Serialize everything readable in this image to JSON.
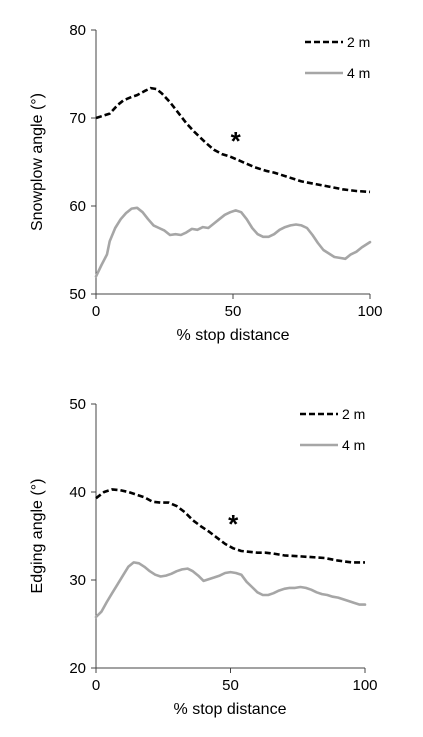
{
  "chart_data": [
    {
      "type": "line",
      "title": "",
      "xlabel": "% stop distance",
      "ylabel": "Snowplow angle (°)",
      "xlim": [
        0,
        100
      ],
      "ylim": [
        50,
        80
      ],
      "xticks": [
        "0",
        "50",
        "100"
      ],
      "yticks": [
        "50",
        "60",
        "70",
        "80"
      ],
      "grid": false,
      "legend_position": "top-right",
      "annotation": {
        "text": "*",
        "x": 51,
        "y": 67.5
      },
      "series": [
        {
          "name": "2 m",
          "style": "dashed",
          "color": "#000000",
          "x": [
            0,
            3,
            5,
            8,
            10,
            13,
            15,
            18,
            20,
            22,
            24,
            27,
            30,
            33,
            36,
            40,
            43,
            46,
            49,
            52,
            55,
            58,
            62,
            65,
            70,
            75,
            80,
            85,
            90,
            95,
            100
          ],
          "y": [
            70.0,
            70.3,
            70.5,
            71.5,
            72.0,
            72.4,
            72.6,
            73.1,
            73.4,
            73.3,
            72.8,
            71.8,
            70.6,
            69.4,
            68.4,
            67.2,
            66.4,
            65.9,
            65.6,
            65.2,
            64.8,
            64.4,
            64.0,
            63.8,
            63.3,
            62.8,
            62.5,
            62.2,
            61.9,
            61.7,
            61.6
          ]
        },
        {
          "name": "4 m",
          "style": "solid",
          "color": "#a6a6a6",
          "x": [
            0,
            2,
            4,
            5,
            7,
            9,
            11,
            13,
            15,
            17,
            19,
            21,
            23,
            25,
            27,
            29,
            31,
            33,
            35,
            37,
            39,
            41,
            43,
            45,
            47,
            49,
            51,
            53,
            55,
            57,
            59,
            61,
            63,
            65,
            67,
            69,
            71,
            73,
            75,
            77,
            79,
            81,
            83,
            85,
            87,
            89,
            91,
            93,
            95,
            97,
            100
          ],
          "y": [
            52.0,
            53.3,
            54.5,
            56.0,
            57.5,
            58.5,
            59.2,
            59.7,
            59.8,
            59.3,
            58.5,
            57.8,
            57.5,
            57.2,
            56.7,
            56.8,
            56.7,
            57.0,
            57.4,
            57.3,
            57.6,
            57.5,
            58.0,
            58.5,
            59.0,
            59.3,
            59.5,
            59.3,
            58.5,
            57.5,
            56.8,
            56.5,
            56.5,
            56.8,
            57.3,
            57.6,
            57.8,
            57.9,
            57.8,
            57.5,
            56.7,
            55.8,
            55.0,
            54.6,
            54.2,
            54.1,
            54.0,
            54.5,
            54.8,
            55.3,
            55.9
          ]
        }
      ]
    },
    {
      "type": "line",
      "title": "",
      "xlabel": "% stop distance",
      "ylabel": "Edging angle (°)",
      "xlim": [
        0,
        100
      ],
      "ylim": [
        20,
        50
      ],
      "xticks": [
        "0",
        "50",
        "100"
      ],
      "yticks": [
        "20",
        "30",
        "40",
        "50"
      ],
      "grid": false,
      "legend_position": "top-right",
      "annotation": {
        "text": "*",
        "x": 51,
        "y": 36.5
      },
      "series": [
        {
          "name": "2 m",
          "style": "dashed",
          "color": "#000000",
          "x": [
            0,
            3,
            6,
            9,
            12,
            15,
            18,
            21,
            24,
            27,
            30,
            33,
            36,
            39,
            42,
            45,
            48,
            51,
            54,
            57,
            60,
            63,
            66,
            70,
            75,
            80,
            85,
            90,
            95,
            100
          ],
          "y": [
            39.3,
            40.0,
            40.3,
            40.2,
            40.0,
            39.7,
            39.4,
            38.9,
            38.8,
            38.8,
            38.4,
            37.7,
            36.8,
            36.1,
            35.5,
            34.8,
            34.1,
            33.6,
            33.3,
            33.2,
            33.1,
            33.1,
            33.0,
            32.8,
            32.7,
            32.6,
            32.5,
            32.2,
            32.0,
            32.0
          ]
        },
        {
          "name": "4 m",
          "style": "solid",
          "color": "#a6a6a6",
          "x": [
            0,
            2,
            4,
            6,
            8,
            10,
            12,
            14,
            16,
            18,
            20,
            22,
            24,
            26,
            28,
            30,
            32,
            34,
            36,
            38,
            40,
            42,
            44,
            46,
            48,
            50,
            52,
            54,
            56,
            58,
            60,
            62,
            64,
            66,
            68,
            70,
            72,
            74,
            76,
            78,
            80,
            82,
            84,
            86,
            88,
            90,
            92,
            94,
            96,
            98,
            100
          ],
          "y": [
            25.8,
            26.4,
            27.5,
            28.5,
            29.5,
            30.5,
            31.5,
            32.0,
            31.9,
            31.5,
            31.0,
            30.6,
            30.4,
            30.5,
            30.7,
            31.0,
            31.2,
            31.3,
            31.0,
            30.5,
            29.9,
            30.1,
            30.3,
            30.5,
            30.8,
            30.9,
            30.8,
            30.6,
            29.8,
            29.2,
            28.6,
            28.3,
            28.3,
            28.5,
            28.8,
            29.0,
            29.1,
            29.1,
            29.2,
            29.1,
            28.9,
            28.6,
            28.4,
            28.3,
            28.1,
            28.0,
            27.8,
            27.6,
            27.4,
            27.2,
            27.2
          ]
        }
      ]
    }
  ]
}
